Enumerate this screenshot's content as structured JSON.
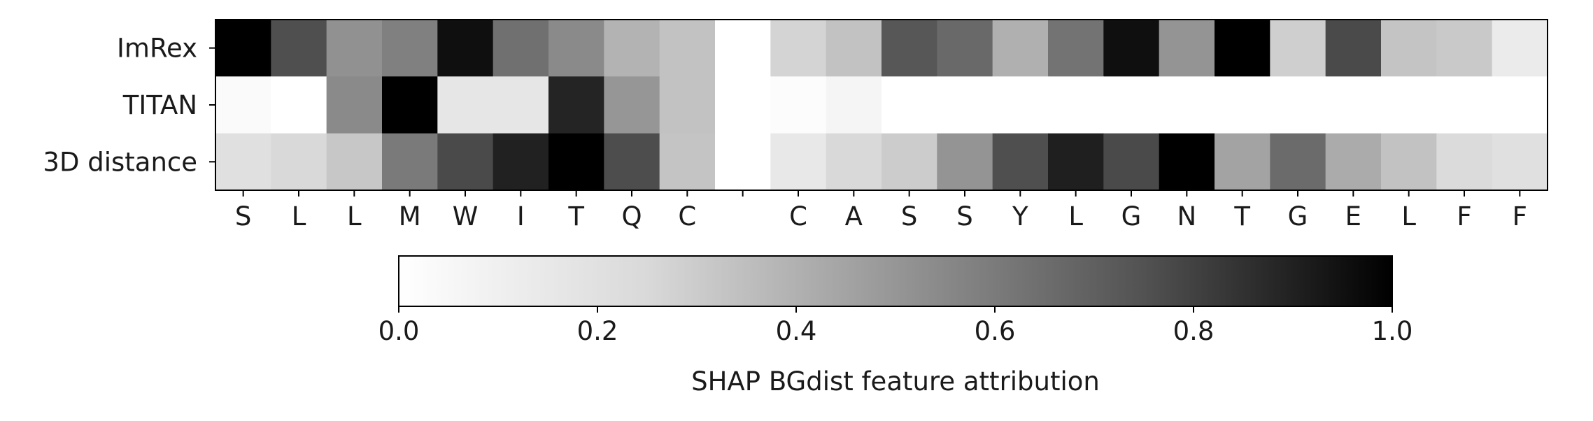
{
  "chart_data": {
    "type": "heatmap",
    "colormap": "greys",
    "rows": [
      "ImRex",
      "TITAN",
      "3D distance"
    ],
    "columns": [
      "S",
      "L",
      "L",
      "M",
      "W",
      "I",
      "T",
      "Q",
      "C",
      "",
      "C",
      "A",
      "S",
      "S",
      "Y",
      "L",
      "G",
      "N",
      "T",
      "G",
      "E",
      "L",
      "F",
      "F"
    ],
    "values": [
      [
        1.0,
        0.69,
        0.43,
        0.5,
        0.94,
        0.56,
        0.46,
        0.3,
        0.24,
        0.0,
        0.17,
        0.24,
        0.66,
        0.59,
        0.31,
        0.55,
        0.94,
        0.42,
        1.0,
        0.19,
        0.71,
        0.23,
        0.21,
        0.08
      ],
      [
        0.02,
        0.0,
        0.46,
        1.0,
        0.1,
        0.1,
        0.86,
        0.41,
        0.24,
        0.0,
        0.01,
        0.04,
        0.0,
        0.0,
        0.0,
        0.0,
        0.0,
        0.0,
        0.0,
        0.0,
        0.0,
        0.0,
        0.0,
        0.0
      ],
      [
        0.12,
        0.15,
        0.22,
        0.52,
        0.71,
        0.87,
        1.0,
        0.7,
        0.23,
        0.0,
        0.09,
        0.15,
        0.2,
        0.42,
        0.69,
        0.88,
        0.71,
        1.0,
        0.36,
        0.58,
        0.33,
        0.24,
        0.14,
        0.12
      ]
    ],
    "colorbar": {
      "ticks": [
        "0.0",
        "0.2",
        "0.4",
        "0.6",
        "0.8",
        "1.0"
      ],
      "range": [
        0,
        1
      ],
      "label": "SHAP BGdist feature attribution"
    }
  }
}
